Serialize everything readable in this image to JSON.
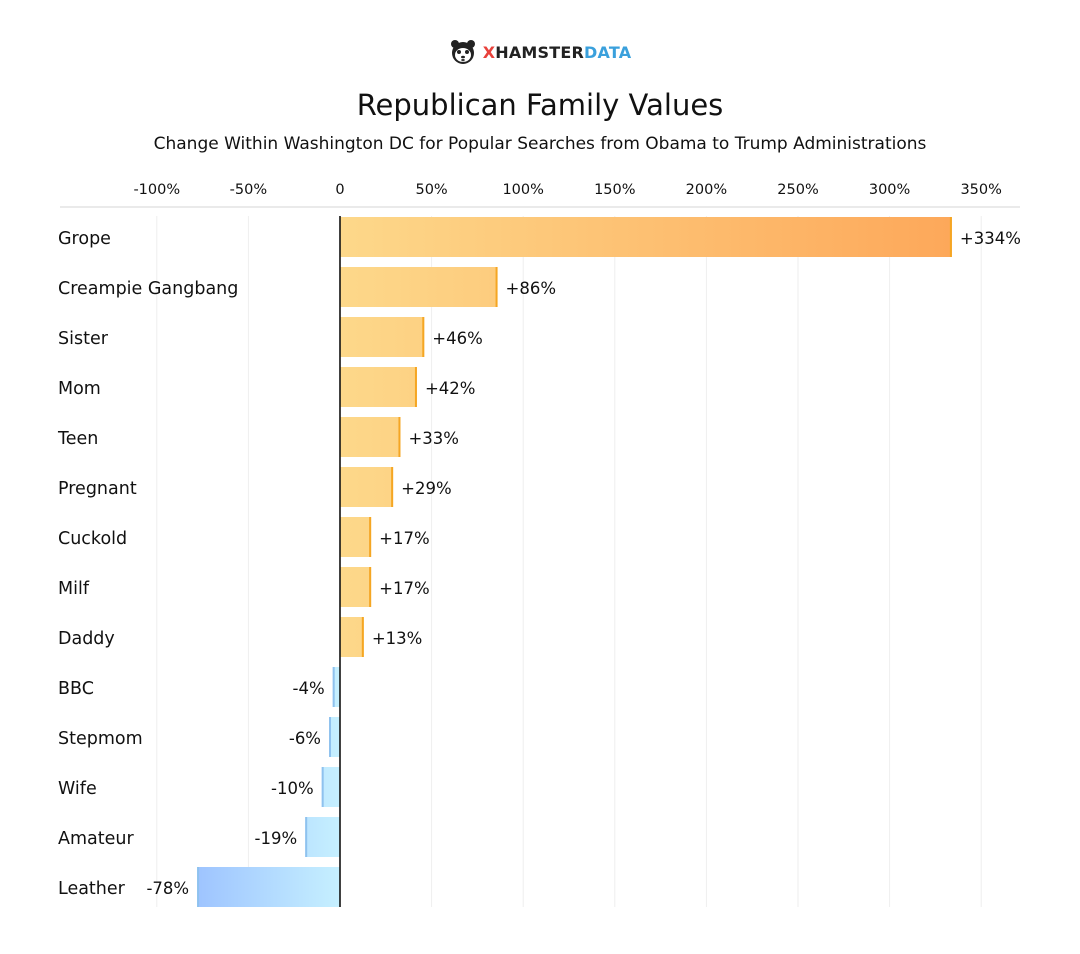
{
  "logo": {
    "x": "X",
    "hamster": "HAMSTER",
    "data": "DATA"
  },
  "title": "Republican Family Values",
  "subtitle": "Change Within Washington DC for Popular Searches from Obama to Trump Administrations",
  "colors": {
    "positive_start": "#fdd88a",
    "positive_end": "#fda85a",
    "positive_edge": "#f5a623",
    "negative_start": "#c6f0ff",
    "negative_end": "#9ec4ff",
    "negative_edge": "#8fc2ee",
    "zero_line": "#111111",
    "grid": "#eeeeee"
  },
  "chart_data": {
    "type": "bar",
    "orientation": "horizontal",
    "categories": [
      "Grope",
      "Creampie Gangbang",
      "Sister",
      "Mom",
      "Teen",
      "Pregnant",
      "Cuckold",
      "Milf",
      "Daddy",
      "BBC",
      "Stepmom",
      "Wife",
      "Amateur",
      "Leather"
    ],
    "values": [
      334,
      86,
      46,
      42,
      33,
      29,
      17,
      17,
      13,
      -4,
      -6,
      -10,
      -19,
      -78
    ],
    "labels": [
      "+334%",
      "+86%",
      "+46%",
      "+42%",
      "+33%",
      "+29%",
      "+17%",
      "+17%",
      "+13%",
      "-4%",
      "-6%",
      "-10%",
      "-19%",
      "-78%"
    ],
    "xlim": [
      -100,
      350
    ],
    "ticks": [
      -100,
      -50,
      0,
      50,
      100,
      150,
      200,
      250,
      300,
      350
    ],
    "tick_labels": [
      "-100%",
      "-50%",
      "0",
      "50%",
      "100%",
      "150%",
      "200%",
      "250%",
      "300%",
      "350%"
    ],
    "axis_position": "top",
    "grid": true,
    "title": "Republican Family Values",
    "xlabel": "",
    "ylabel": ""
  }
}
